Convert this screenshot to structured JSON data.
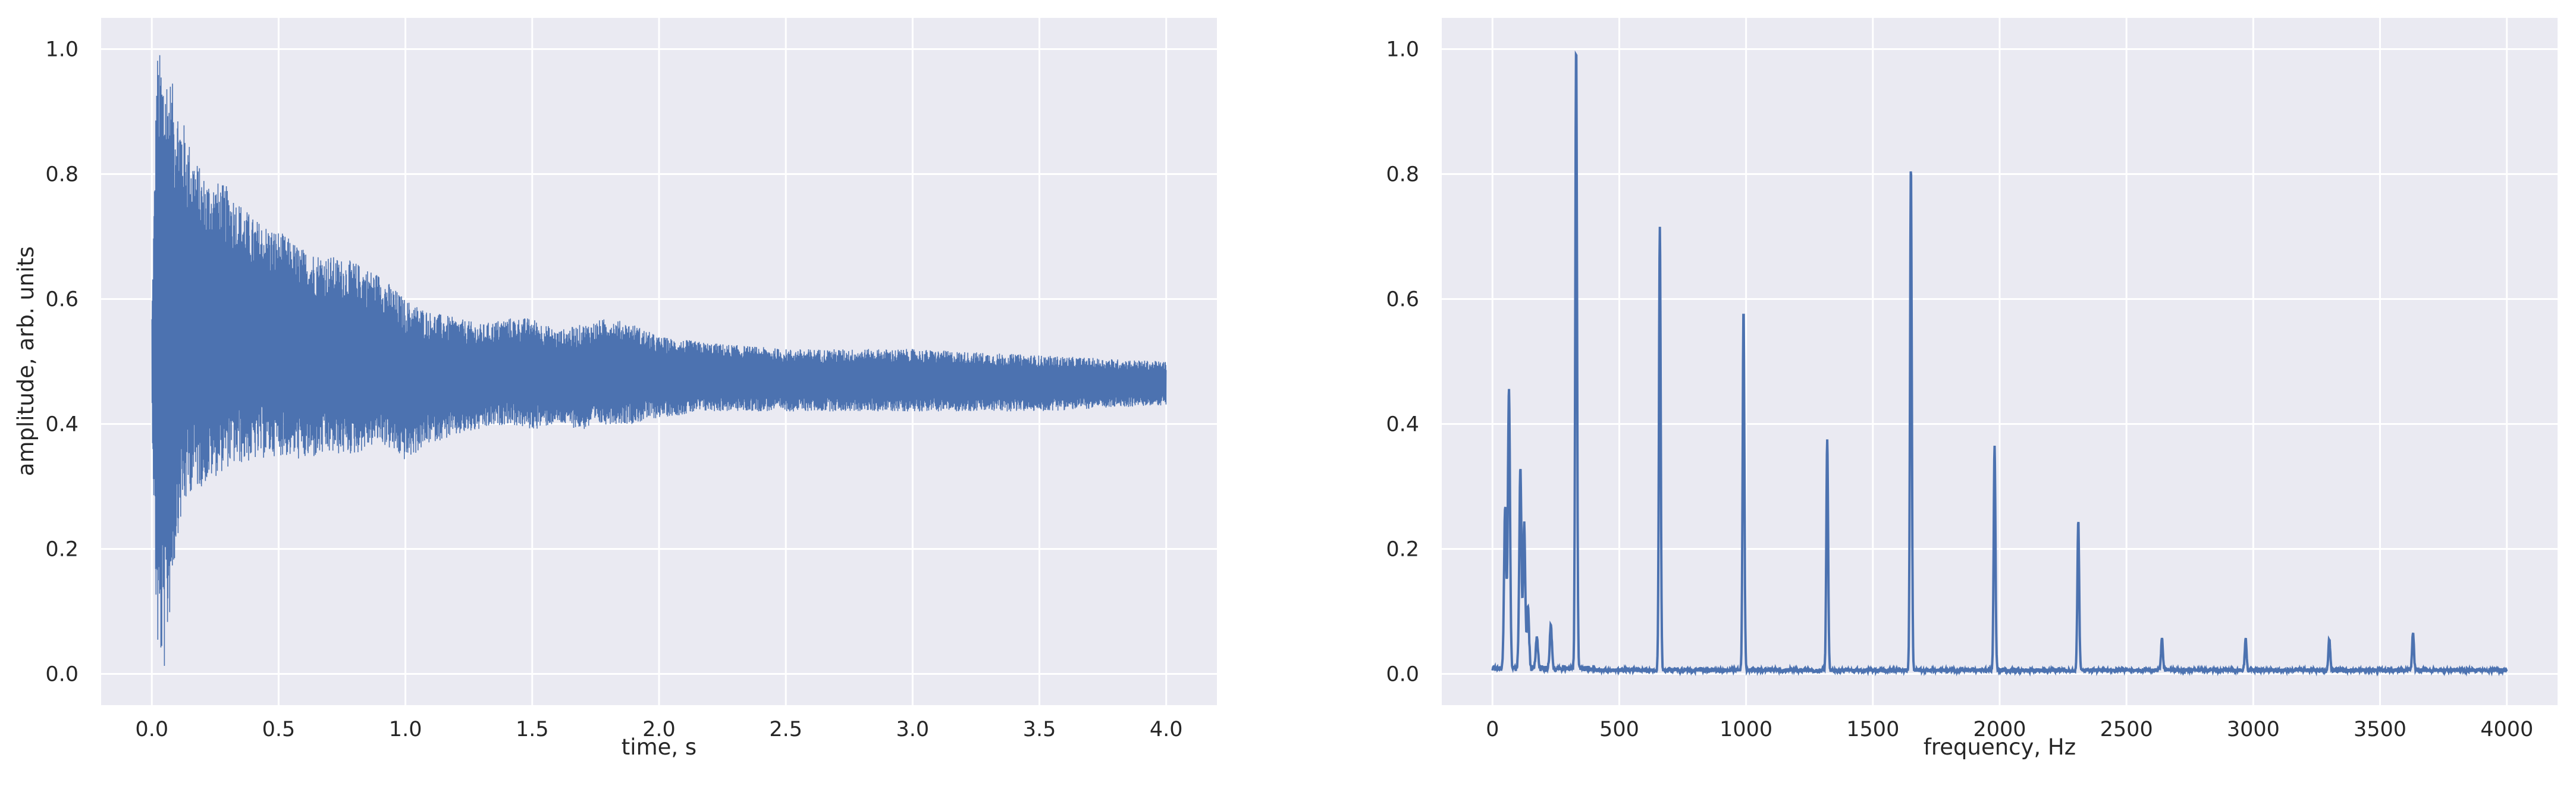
{
  "chart_data": [
    {
      "type": "line",
      "title": "",
      "xlabel": "time, s",
      "ylabel": "amplitude, arb. units",
      "xlim": [
        -0.2,
        4.2
      ],
      "ylim": [
        -0.05,
        1.05
      ],
      "xticks": [
        "0.0",
        "0.5",
        "1.0",
        "1.5",
        "2.0",
        "2.5",
        "3.0",
        "3.5",
        "4.0"
      ],
      "yticks": [
        "0.0",
        "0.2",
        "0.4",
        "0.6",
        "0.8",
        "1.0"
      ],
      "grid": true,
      "color": "#4C72B0",
      "series_description": "Decaying oscillation centered near 0.46",
      "envelope": {
        "t": [
          0.0,
          0.02,
          0.05,
          0.1,
          0.15,
          0.2,
          0.3,
          0.4,
          0.5,
          0.6,
          0.7,
          0.8,
          0.9,
          1.0,
          1.1,
          1.2,
          1.3,
          1.4,
          1.5,
          1.6,
          1.7,
          1.8,
          1.9,
          2.0,
          2.2,
          2.5,
          3.0,
          3.5,
          4.0
        ],
        "upper": [
          0.58,
          1.0,
          0.99,
          0.92,
          0.85,
          0.8,
          0.78,
          0.73,
          0.71,
          0.68,
          0.67,
          0.66,
          0.64,
          0.6,
          0.58,
          0.57,
          0.56,
          0.57,
          0.57,
          0.55,
          0.56,
          0.57,
          0.56,
          0.54,
          0.53,
          0.52,
          0.52,
          0.51,
          0.5
        ],
        "lower": [
          0.42,
          0.03,
          0.0,
          0.22,
          0.29,
          0.3,
          0.33,
          0.34,
          0.35,
          0.34,
          0.35,
          0.35,
          0.37,
          0.34,
          0.37,
          0.38,
          0.39,
          0.4,
          0.39,
          0.4,
          0.39,
          0.4,
          0.4,
          0.41,
          0.42,
          0.42,
          0.42,
          0.42,
          0.43
        ]
      }
    },
    {
      "type": "line",
      "title": "",
      "xlabel": "frequency, Hz",
      "ylabel": "",
      "xlim": [
        -200,
        4200
      ],
      "ylim": [
        -0.05,
        1.05
      ],
      "xticks": [
        "0",
        "500",
        "1000",
        "1500",
        "2000",
        "2500",
        "3000",
        "3500",
        "4000"
      ],
      "yticks": [
        "0.0",
        "0.2",
        "0.4",
        "0.6",
        "0.8",
        "1.0"
      ],
      "grid": true,
      "color": "#4C72B0",
      "peaks": [
        {
          "x": 50,
          "y": 0.26
        },
        {
          "x": 65,
          "y": 0.45
        },
        {
          "x": 110,
          "y": 0.32
        },
        {
          "x": 125,
          "y": 0.23
        },
        {
          "x": 140,
          "y": 0.1
        },
        {
          "x": 175,
          "y": 0.05
        },
        {
          "x": 230,
          "y": 0.07
        },
        {
          "x": 330,
          "y": 1.0
        },
        {
          "x": 660,
          "y": 0.71
        },
        {
          "x": 990,
          "y": 0.58
        },
        {
          "x": 1320,
          "y": 0.37
        },
        {
          "x": 1650,
          "y": 0.81
        },
        {
          "x": 1980,
          "y": 0.36
        },
        {
          "x": 2310,
          "y": 0.24
        },
        {
          "x": 2640,
          "y": 0.05
        },
        {
          "x": 2970,
          "y": 0.05
        },
        {
          "x": 3300,
          "y": 0.05
        },
        {
          "x": 3630,
          "y": 0.06
        }
      ]
    }
  ]
}
